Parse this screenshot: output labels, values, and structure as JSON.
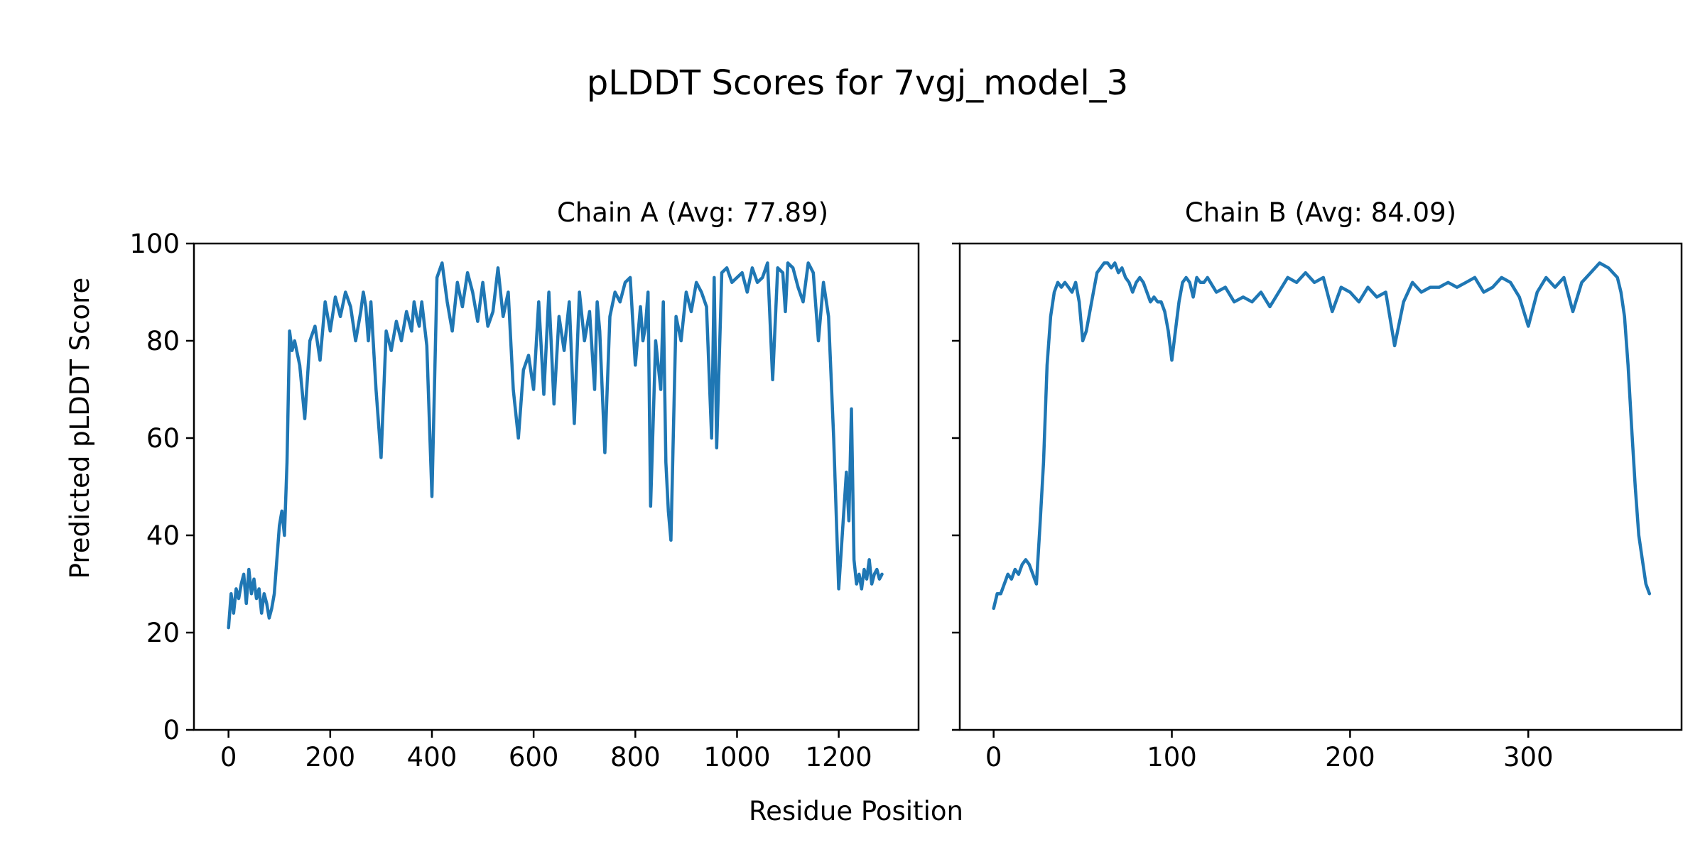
{
  "figure": {
    "title": "pLDDT Scores for 7vgj_model_3",
    "shared_xlabel": "Residue Position",
    "shared_ylabel": "Predicted pLDDT Score",
    "line_color": "#1f77b4"
  },
  "chart_data": [
    {
      "type": "line",
      "title": "Chain A (Avg: 77.89)",
      "xlabel": "Residue Position",
      "ylabel": "Predicted pLDDT Score",
      "xlim": [
        -68,
        1357
      ],
      "ylim": [
        0,
        100
      ],
      "xticks": [
        0,
        200,
        400,
        600,
        800,
        1000,
        1200
      ],
      "yticks": [
        0,
        20,
        40,
        60,
        80,
        100
      ],
      "series": [
        {
          "name": "Chain A",
          "x": [
            0,
            5,
            10,
            15,
            20,
            25,
            30,
            35,
            40,
            45,
            50,
            55,
            60,
            65,
            70,
            75,
            80,
            85,
            90,
            95,
            100,
            105,
            110,
            115,
            120,
            125,
            130,
            140,
            150,
            160,
            170,
            180,
            190,
            200,
            210,
            220,
            230,
            240,
            250,
            260,
            265,
            270,
            275,
            280,
            290,
            300,
            310,
            320,
            330,
            340,
            350,
            360,
            365,
            370,
            375,
            380,
            390,
            400,
            410,
            420,
            430,
            440,
            450,
            460,
            470,
            480,
            490,
            500,
            510,
            520,
            530,
            540,
            550,
            560,
            570,
            580,
            590,
            600,
            610,
            620,
            630,
            640,
            650,
            660,
            670,
            680,
            690,
            700,
            710,
            720,
            725,
            730,
            740,
            750,
            760,
            770,
            780,
            790,
            800,
            810,
            815,
            820,
            825,
            830,
            840,
            850,
            855,
            860,
            865,
            870,
            880,
            890,
            900,
            910,
            920,
            930,
            940,
            950,
            955,
            960,
            970,
            980,
            990,
            1000,
            1010,
            1020,
            1030,
            1040,
            1050,
            1060,
            1070,
            1080,
            1090,
            1095,
            1100,
            1110,
            1120,
            1130,
            1140,
            1150,
            1160,
            1170,
            1180,
            1190,
            1200,
            1210,
            1215,
            1220,
            1225,
            1230,
            1235,
            1240,
            1245,
            1250,
            1255,
            1260,
            1265,
            1270,
            1275,
            1280,
            1285
          ],
          "values": [
            21,
            28,
            24,
            29,
            27,
            30,
            32,
            26,
            33,
            28,
            31,
            27,
            29,
            24,
            28,
            26,
            23,
            25,
            28,
            35,
            42,
            45,
            40,
            55,
            82,
            78,
            80,
            75,
            64,
            80,
            83,
            76,
            88,
            82,
            89,
            85,
            90,
            87,
            80,
            86,
            90,
            87,
            80,
            88,
            70,
            56,
            82,
            78,
            84,
            80,
            86,
            82,
            88,
            85,
            83,
            88,
            79,
            48,
            93,
            96,
            88,
            82,
            92,
            87,
            94,
            90,
            84,
            92,
            83,
            86,
            95,
            85,
            90,
            70,
            60,
            74,
            77,
            70,
            88,
            69,
            90,
            67,
            85,
            78,
            88,
            63,
            90,
            80,
            86,
            70,
            88,
            82,
            57,
            85,
            90,
            88,
            92,
            93,
            75,
            87,
            80,
            83,
            90,
            46,
            80,
            70,
            88,
            55,
            45,
            39,
            85,
            80,
            90,
            86,
            92,
            90,
            87,
            60,
            93,
            58,
            94,
            95,
            92,
            93,
            94,
            90,
            95,
            92,
            93,
            96,
            72,
            95,
            94,
            86,
            96,
            95,
            91,
            88,
            96,
            94,
            80,
            92,
            85,
            60,
            29,
            45,
            53,
            43,
            66,
            35,
            30,
            32,
            29,
            33,
            31,
            35,
            30,
            32,
            33,
            31,
            32
          ]
        }
      ]
    },
    {
      "type": "line",
      "title": "Chain B (Avg: 84.09)",
      "xlabel": "Residue Position",
      "ylabel": "",
      "xlim": [
        -19,
        386
      ],
      "ylim": [
        0,
        100
      ],
      "xticks": [
        0,
        100,
        200,
        300
      ],
      "yticks": [
        0,
        20,
        40,
        60,
        80,
        100
      ],
      "series": [
        {
          "name": "Chain B",
          "x": [
            0,
            2,
            4,
            6,
            8,
            10,
            12,
            14,
            16,
            18,
            20,
            22,
            24,
            26,
            28,
            30,
            32,
            34,
            36,
            38,
            40,
            42,
            44,
            46,
            48,
            50,
            52,
            54,
            56,
            58,
            60,
            62,
            64,
            66,
            68,
            70,
            72,
            74,
            76,
            78,
            80,
            82,
            84,
            86,
            88,
            90,
            92,
            94,
            96,
            98,
            100,
            102,
            104,
            106,
            108,
            110,
            112,
            114,
            116,
            118,
            120,
            125,
            130,
            135,
            140,
            145,
            150,
            155,
            160,
            165,
            170,
            175,
            180,
            185,
            190,
            195,
            200,
            205,
            210,
            215,
            220,
            225,
            230,
            235,
            240,
            245,
            250,
            255,
            260,
            265,
            270,
            275,
            280,
            285,
            290,
            295,
            300,
            305,
            310,
            315,
            320,
            325,
            330,
            335,
            340,
            345,
            350,
            352,
            354,
            356,
            358,
            360,
            362,
            364,
            366,
            368
          ],
          "values": [
            25,
            28,
            28,
            30,
            32,
            31,
            33,
            32,
            34,
            35,
            34,
            32,
            30,
            42,
            55,
            75,
            85,
            90,
            92,
            91,
            92,
            91,
            90,
            92,
            88,
            80,
            82,
            86,
            90,
            94,
            95,
            96,
            96,
            95,
            96,
            94,
            95,
            93,
            92,
            90,
            92,
            93,
            92,
            90,
            88,
            89,
            88,
            88,
            86,
            82,
            76,
            82,
            88,
            92,
            93,
            92,
            89,
            93,
            92,
            92,
            93,
            90,
            91,
            88,
            89,
            88,
            90,
            87,
            90,
            93,
            92,
            94,
            92,
            93,
            86,
            91,
            90,
            88,
            91,
            89,
            90,
            79,
            88,
            92,
            90,
            91,
            91,
            92,
            91,
            92,
            93,
            90,
            91,
            93,
            92,
            89,
            83,
            90,
            93,
            91,
            93,
            86,
            92,
            94,
            96,
            95,
            93,
            90,
            85,
            75,
            62,
            50,
            40,
            35,
            30,
            28
          ]
        }
      ]
    }
  ]
}
